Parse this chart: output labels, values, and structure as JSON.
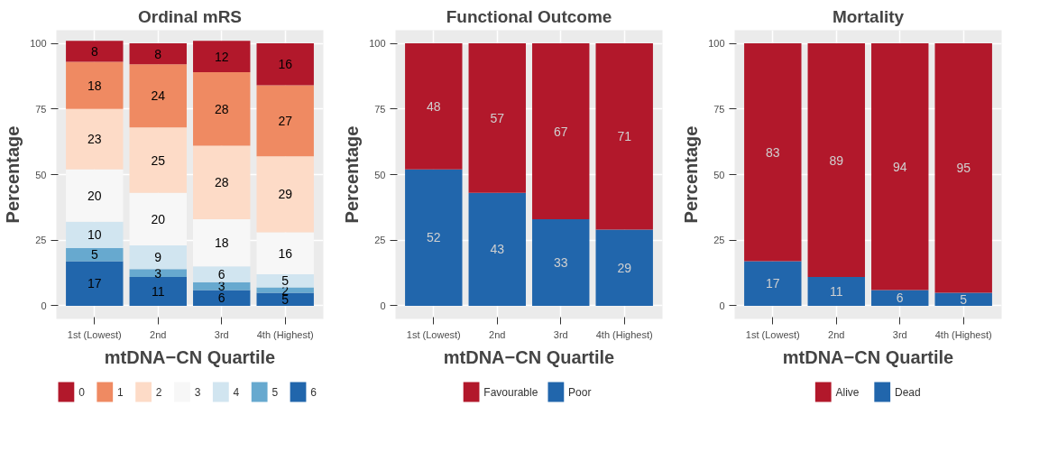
{
  "chart_data": [
    {
      "type": "bar",
      "title": "Ordinal mRS",
      "xlabel": "mtDNA−CN Quartile",
      "ylabel": "Percentage",
      "categories": [
        "1st (Lowest)",
        "2nd",
        "3rd",
        "4th (Highest)"
      ],
      "stacked": true,
      "data_labels": true,
      "grid": true,
      "legend": "bottom",
      "ylim": [
        -5,
        105
      ],
      "yticks": [
        0,
        25,
        50,
        75,
        100
      ],
      "series": [
        {
          "name": "6",
          "color": "#2166ac",
          "values": [
            17,
            11,
            6,
            5
          ]
        },
        {
          "name": "5",
          "color": "#67a9cf",
          "values": [
            5,
            3,
            3,
            2
          ]
        },
        {
          "name": "4",
          "color": "#d1e5f0",
          "values": [
            10,
            9,
            6,
            5
          ]
        },
        {
          "name": "3",
          "color": "#f7f7f7",
          "values": [
            20,
            20,
            18,
            16
          ]
        },
        {
          "name": "2",
          "color": "#fddbc7",
          "values": [
            23,
            25,
            28,
            29
          ]
        },
        {
          "name": "1",
          "color": "#ef8a62",
          "values": [
            18,
            24,
            28,
            27
          ]
        },
        {
          "name": "0",
          "color": "#b2182b",
          "values": [
            8,
            8,
            12,
            16
          ]
        }
      ]
    },
    {
      "type": "bar",
      "title": "Functional Outcome",
      "xlabel": "mtDNA−CN Quartile",
      "ylabel": "Percentage",
      "categories": [
        "1st (Lowest)",
        "2nd",
        "3rd",
        "4th (Highest)"
      ],
      "stacked": true,
      "data_labels": true,
      "grid": true,
      "legend": "bottom",
      "ylim": [
        -5,
        105
      ],
      "yticks": [
        0,
        25,
        50,
        75,
        100
      ],
      "series": [
        {
          "name": "Poor",
          "color": "#2166ac",
          "values": [
            52,
            43,
            33,
            29
          ]
        },
        {
          "name": "Favourable",
          "color": "#b2182b",
          "values": [
            48,
            57,
            67,
            71
          ]
        }
      ]
    },
    {
      "type": "bar",
      "title": "Mortality",
      "xlabel": "mtDNA−CN Quartile",
      "ylabel": "Percentage",
      "categories": [
        "1st (Lowest)",
        "2nd",
        "3rd",
        "4th (Highest)"
      ],
      "stacked": true,
      "data_labels": true,
      "grid": true,
      "legend": "bottom",
      "ylim": [
        -5,
        105
      ],
      "yticks": [
        0,
        25,
        50,
        75,
        100
      ],
      "series": [
        {
          "name": "Dead",
          "color": "#2166ac",
          "values": [
            17,
            11,
            6,
            5
          ]
        },
        {
          "name": "Alive",
          "color": "#b2182b",
          "values": [
            83,
            89,
            94,
            95
          ]
        }
      ]
    }
  ]
}
